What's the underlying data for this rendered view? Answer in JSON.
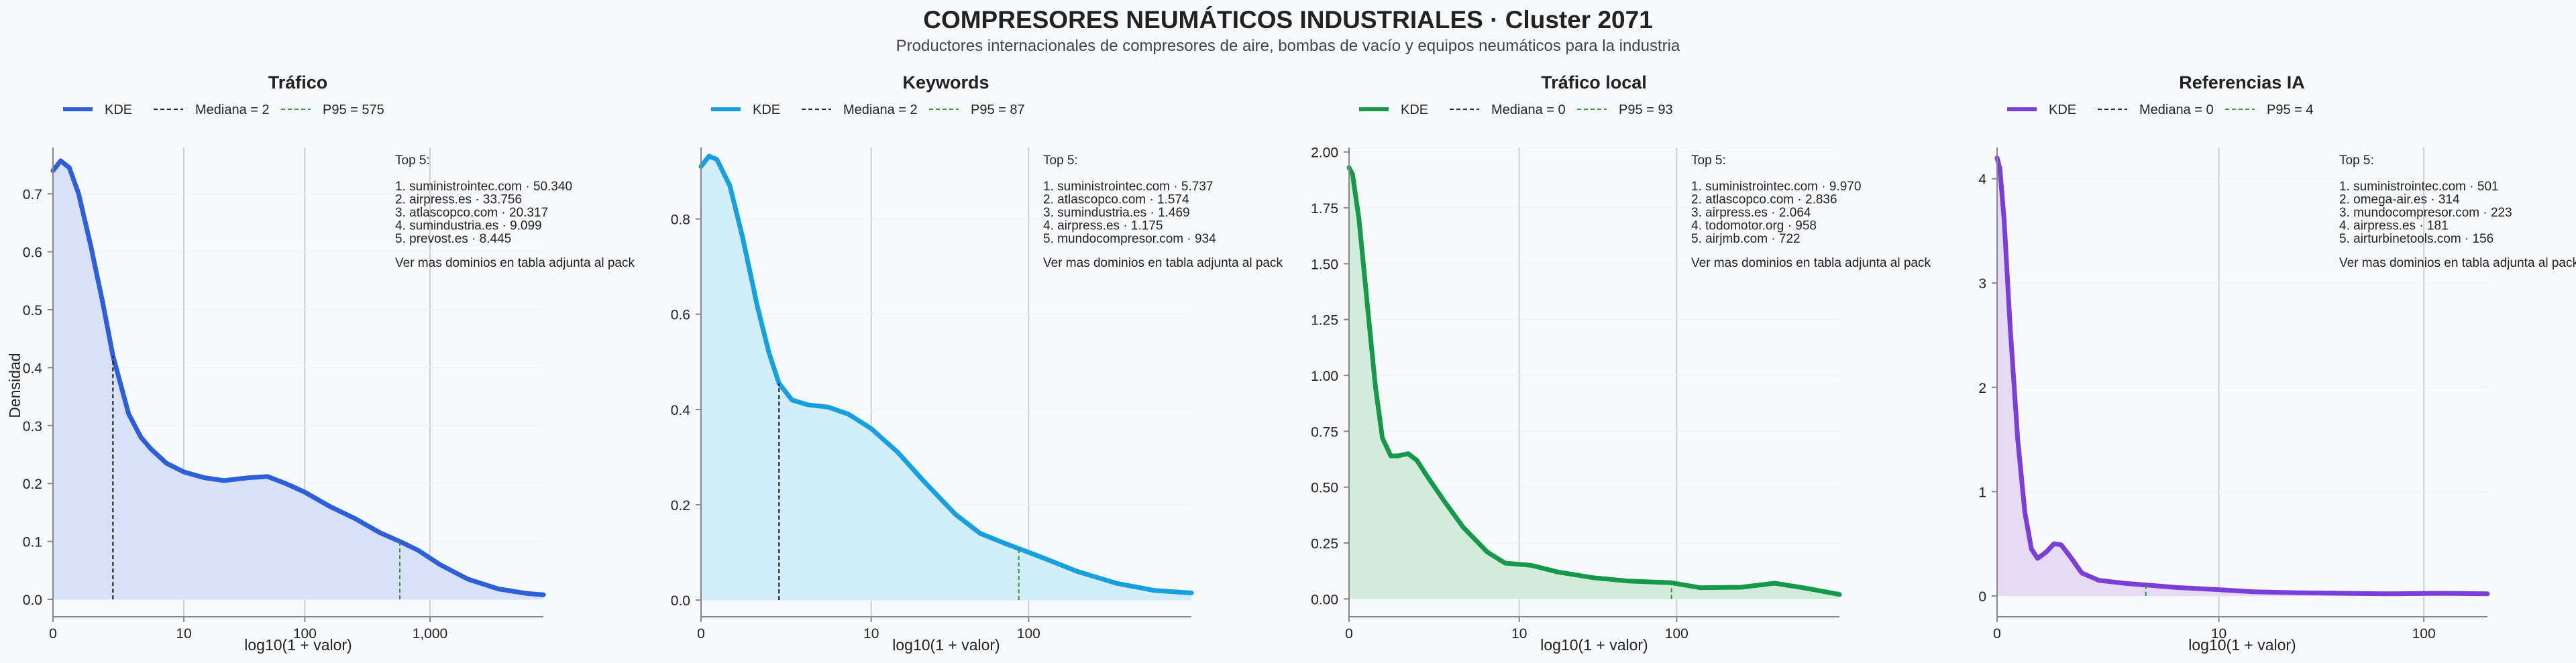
{
  "header": {
    "title": "COMPRESORES NEUMÁTICOS INDUSTRIALES · Cluster 2071",
    "subtitle": "Productores internacionales de compresores de aire, bombas de vacío y equipos neumáticos para la industria"
  },
  "chart_data": [
    {
      "type": "area",
      "title": "Tráfico",
      "xlabel": "log10(1 + valor)",
      "ylabel": "Densidad",
      "color": "#2c5fd9",
      "fill": "#d8e1f9",
      "x_scale": "log1p",
      "xlim": [
        0,
        8000
      ],
      "ylim": [
        -0.03,
        0.78
      ],
      "x_ticks": [
        {
          "value": 0,
          "label": "0"
        },
        {
          "value": 10,
          "label": "10"
        },
        {
          "value": 100,
          "label": "100"
        },
        {
          "value": 1000,
          "label": "1,000"
        }
      ],
      "y_ticks": [
        {
          "value": 0,
          "label": "0.0"
        },
        {
          "value": 0.1,
          "label": "0.1"
        },
        {
          "value": 0.2,
          "label": "0.2"
        },
        {
          "value": 0.3,
          "label": "0.3"
        },
        {
          "value": 0.4,
          "label": "0.4"
        },
        {
          "value": 0.5,
          "label": "0.5"
        },
        {
          "value": 0.6,
          "label": "0.6"
        },
        {
          "value": 0.7,
          "label": "0.7"
        }
      ],
      "legend": [
        {
          "label": "KDE",
          "style": "solid"
        },
        {
          "label": "Mediana = 2",
          "style": "dashed-black"
        },
        {
          "label": "P95 = 575",
          "style": "dashed-green"
        }
      ],
      "median": 2,
      "p95": 575,
      "kde": [
        [
          0,
          0.74
        ],
        [
          0.15,
          0.757
        ],
        [
          0.35,
          0.745
        ],
        [
          0.6,
          0.7
        ],
        [
          1,
          0.61
        ],
        [
          1.5,
          0.51
        ],
        [
          2,
          0.42
        ],
        [
          3,
          0.32
        ],
        [
          4,
          0.28
        ],
        [
          5,
          0.26
        ],
        [
          7,
          0.235
        ],
        [
          10,
          0.22
        ],
        [
          15,
          0.21
        ],
        [
          22,
          0.205
        ],
        [
          35,
          0.21
        ],
        [
          50,
          0.212
        ],
        [
          70,
          0.2
        ],
        [
          100,
          0.185
        ],
        [
          160,
          0.16
        ],
        [
          250,
          0.14
        ],
        [
          400,
          0.115
        ],
        [
          575,
          0.1
        ],
        [
          800,
          0.085
        ],
        [
          1200,
          0.06
        ],
        [
          2000,
          0.035
        ],
        [
          3500,
          0.018
        ],
        [
          6000,
          0.01
        ],
        [
          8000,
          0.008
        ]
      ],
      "top5_title": "Top 5:",
      "top5": [
        "1. suministrointec.com · 50.340",
        "2. airpress.es · 33.756",
        "3. atlascopco.com · 20.317",
        "4. sumindustria.es · 9.099",
        "5. prevost.es · 8.445"
      ],
      "top5_note": "Ver mas dominios en tabla adjunta al pack"
    },
    {
      "type": "area",
      "title": "Keywords",
      "xlabel": "log10(1 + valor)",
      "ylabel": "",
      "color": "#16a0e0",
      "fill": "#d3eefb",
      "x_scale": "log1p",
      "xlim": [
        0,
        1000
      ],
      "ylim": [
        -0.035,
        0.95
      ],
      "x_ticks": [
        {
          "value": 0,
          "label": "0"
        },
        {
          "value": 10,
          "label": "10"
        },
        {
          "value": 100,
          "label": "100"
        }
      ],
      "y_ticks": [
        {
          "value": 0,
          "label": "0.0"
        },
        {
          "value": 0.2,
          "label": "0.2"
        },
        {
          "value": 0.4,
          "label": "0.4"
        },
        {
          "value": 0.6,
          "label": "0.6"
        },
        {
          "value": 0.8,
          "label": "0.8"
        }
      ],
      "legend": [
        {
          "label": "KDE",
          "style": "solid"
        },
        {
          "label": "Mediana = 2",
          "style": "dashed-black"
        },
        {
          "label": "P95 = 87",
          "style": "dashed-green"
        }
      ],
      "median": 2,
      "p95": 87,
      "kde": [
        [
          0,
          0.91
        ],
        [
          0.12,
          0.932
        ],
        [
          0.25,
          0.925
        ],
        [
          0.5,
          0.87
        ],
        [
          0.8,
          0.76
        ],
        [
          1.2,
          0.62
        ],
        [
          1.6,
          0.52
        ],
        [
          2,
          0.455
        ],
        [
          2.6,
          0.42
        ],
        [
          3.5,
          0.41
        ],
        [
          5,
          0.405
        ],
        [
          7,
          0.39
        ],
        [
          10,
          0.36
        ],
        [
          15,
          0.31
        ],
        [
          22,
          0.25
        ],
        [
          35,
          0.18
        ],
        [
          50,
          0.14
        ],
        [
          70,
          0.12
        ],
        [
          87,
          0.108
        ],
        [
          120,
          0.09
        ],
        [
          200,
          0.06
        ],
        [
          350,
          0.035
        ],
        [
          600,
          0.02
        ],
        [
          1000,
          0.015
        ]
      ],
      "top5_title": "Top 5:",
      "top5": [
        "1. suministrointec.com · 5.737",
        "2. atlascopco.com · 1.574",
        "3. sumindustria.es · 1.469",
        "4. airpress.es · 1.175",
        "5. mundocompresor.com · 934"
      ],
      "top5_note": "Ver mas dominios en tabla adjunta al pack"
    },
    {
      "type": "area",
      "title": "Tráfico local",
      "xlabel": "log10(1 + valor)",
      "ylabel": "",
      "color": "#16994a",
      "fill": "#d2ecdb",
      "x_scale": "log1p",
      "xlim": [
        0,
        1000
      ],
      "ylim": [
        -0.08,
        2.02
      ],
      "x_ticks": [
        {
          "value": 0,
          "label": "0"
        },
        {
          "value": 10,
          "label": "10"
        },
        {
          "value": 100,
          "label": "100"
        }
      ],
      "y_ticks": [
        {
          "value": 0,
          "label": "0.00"
        },
        {
          "value": 0.25,
          "label": "0.25"
        },
        {
          "value": 0.5,
          "label": "0.50"
        },
        {
          "value": 0.75,
          "label": "0.75"
        },
        {
          "value": 1.0,
          "label": "1.00"
        },
        {
          "value": 1.25,
          "label": "1.25"
        },
        {
          "value": 1.5,
          "label": "1.50"
        },
        {
          "value": 1.75,
          "label": "1.75"
        },
        {
          "value": 2.0,
          "label": "2.00"
        }
      ],
      "legend": [
        {
          "label": "KDE",
          "style": "solid"
        },
        {
          "label": "Mediana = 0",
          "style": "dashed-black"
        },
        {
          "label": "P95 = 93",
          "style": "dashed-green"
        }
      ],
      "median": 0,
      "p95": 93,
      "kde": [
        [
          0,
          1.93
        ],
        [
          0.05,
          1.9
        ],
        [
          0.15,
          1.7
        ],
        [
          0.3,
          1.3
        ],
        [
          0.45,
          0.95
        ],
        [
          0.6,
          0.72
        ],
        [
          0.8,
          0.64
        ],
        [
          1.0,
          0.64
        ],
        [
          1.3,
          0.65
        ],
        [
          1.6,
          0.62
        ],
        [
          2.0,
          0.55
        ],
        [
          2.8,
          0.44
        ],
        [
          4,
          0.32
        ],
        [
          6,
          0.21
        ],
        [
          8,
          0.16
        ],
        [
          12,
          0.15
        ],
        [
          18,
          0.12
        ],
        [
          30,
          0.095
        ],
        [
          50,
          0.08
        ],
        [
          93,
          0.072
        ],
        [
          140,
          0.05
        ],
        [
          250,
          0.052
        ],
        [
          400,
          0.07
        ],
        [
          600,
          0.05
        ],
        [
          1000,
          0.02
        ]
      ],
      "top5_title": "Top 5:",
      "top5": [
        "1. suministrointec.com · 9.970",
        "2. atlascopco.com · 2.836",
        "3. airpress.es · 2.064",
        "4. todomotor.org · 958",
        "5. airjmb.com · 722"
      ],
      "top5_note": "Ver mas dominios en tabla adjunta al pack"
    },
    {
      "type": "area",
      "title": "Referencias IA",
      "xlabel": "log10(1 + valor)",
      "ylabel": "",
      "color": "#7a3fd8",
      "fill": "#e6daf7",
      "x_scale": "log1p",
      "xlim": [
        0,
        200
      ],
      "ylim": [
        -0.2,
        4.3
      ],
      "x_ticks": [
        {
          "value": 0,
          "label": "0"
        },
        {
          "value": 10,
          "label": "10"
        },
        {
          "value": 100,
          "label": "100"
        }
      ],
      "y_ticks": [
        {
          "value": 0,
          "label": "0"
        },
        {
          "value": 1,
          "label": "1"
        },
        {
          "value": 2,
          "label": "2"
        },
        {
          "value": 3,
          "label": "3"
        },
        {
          "value": 4,
          "label": "4"
        }
      ],
      "legend": [
        {
          "label": "KDE",
          "style": "solid"
        },
        {
          "label": "Mediana = 0",
          "style": "dashed-black"
        },
        {
          "label": "P95 = 4",
          "style": "dashed-green"
        }
      ],
      "median": 0,
      "p95": 4,
      "kde": [
        [
          0,
          4.2
        ],
        [
          0.03,
          4.1
        ],
        [
          0.08,
          3.6
        ],
        [
          0.15,
          2.6
        ],
        [
          0.25,
          1.5
        ],
        [
          0.35,
          0.8
        ],
        [
          0.45,
          0.45
        ],
        [
          0.55,
          0.36
        ],
        [
          0.7,
          0.42
        ],
        [
          0.85,
          0.5
        ],
        [
          1.0,
          0.49
        ],
        [
          1.2,
          0.38
        ],
        [
          1.5,
          0.22
        ],
        [
          2,
          0.15
        ],
        [
          3,
          0.12
        ],
        [
          4,
          0.105
        ],
        [
          6,
          0.08
        ],
        [
          10,
          0.06
        ],
        [
          15,
          0.04
        ],
        [
          25,
          0.03
        ],
        [
          40,
          0.025
        ],
        [
          70,
          0.02
        ],
        [
          120,
          0.025
        ],
        [
          200,
          0.02
        ]
      ],
      "top5_title": "Top 5:",
      "top5": [
        "1. suministrointec.com · 501",
        "2. omega-air.es · 314",
        "3. mundocompresor.com · 223",
        "4. airpress.es · 181",
        "5. airturbinetools.com · 156"
      ],
      "top5_note": "Ver mas dominios en tabla adjunta al pack"
    }
  ]
}
